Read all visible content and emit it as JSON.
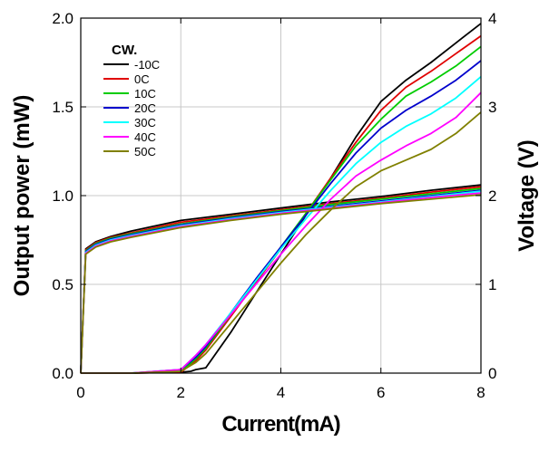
{
  "chart_data": {
    "type": "line",
    "xlabel": "Current(mA)",
    "ylabel": "Output power (mW)",
    "ylabel_right": "Voltage (V)",
    "xlim": [
      0,
      8
    ],
    "ylim": [
      0,
      2.0
    ],
    "ylim_right": [
      0,
      4
    ],
    "xticks": [
      "0",
      "2",
      "4",
      "6",
      "8"
    ],
    "yticks": [
      "0.0",
      "0.5",
      "1.0",
      "1.5",
      "2.0"
    ],
    "yticks_right": [
      "0",
      "1",
      "2",
      "3",
      "4"
    ],
    "grid": true,
    "legend_title": "CW.",
    "legend_position": "top-left",
    "series": [
      {
        "name": "-10C",
        "color": "#000000",
        "power": [
          [
            0,
            0
          ],
          [
            1,
            0
          ],
          [
            2,
            0.005
          ],
          [
            2.2,
            0.01
          ],
          [
            2.3,
            0.02
          ],
          [
            2.5,
            0.03
          ],
          [
            3,
            0.23
          ],
          [
            3.5,
            0.45
          ],
          [
            4,
            0.67
          ],
          [
            4.5,
            0.89
          ],
          [
            5,
            1.1
          ],
          [
            5.5,
            1.33
          ],
          [
            6,
            1.53
          ],
          [
            6.5,
            1.65
          ],
          [
            7,
            1.75
          ],
          [
            7.5,
            1.86
          ],
          [
            8,
            1.97
          ]
        ],
        "voltage": [
          [
            0,
            0
          ],
          [
            0.1,
            1.4
          ],
          [
            0.3,
            1.48
          ],
          [
            0.6,
            1.54
          ],
          [
            1,
            1.6
          ],
          [
            2,
            1.72
          ],
          [
            3,
            1.79
          ],
          [
            4,
            1.86
          ],
          [
            5,
            1.93
          ],
          [
            6,
            1.99
          ],
          [
            7,
            2.06
          ],
          [
            8,
            2.12
          ]
        ]
      },
      {
        "name": "0C",
        "color": "#e00000",
        "power": [
          [
            0,
            0
          ],
          [
            1,
            0
          ],
          [
            2,
            0.005
          ],
          [
            2.3,
            0.07
          ],
          [
            2.5,
            0.13
          ],
          [
            3,
            0.32
          ],
          [
            3.5,
            0.51
          ],
          [
            4,
            0.7
          ],
          [
            4.5,
            0.9
          ],
          [
            5,
            1.1
          ],
          [
            5.5,
            1.3
          ],
          [
            6,
            1.48
          ],
          [
            6.5,
            1.61
          ],
          [
            7,
            1.7
          ],
          [
            7.5,
            1.8
          ],
          [
            8,
            1.9
          ]
        ],
        "voltage": [
          [
            0,
            0
          ],
          [
            0.1,
            1.39
          ],
          [
            0.3,
            1.47
          ],
          [
            0.6,
            1.53
          ],
          [
            1,
            1.58
          ],
          [
            2,
            1.7
          ],
          [
            3,
            1.77
          ],
          [
            4,
            1.84
          ],
          [
            5,
            1.91
          ],
          [
            6,
            1.97
          ],
          [
            7,
            2.04
          ],
          [
            8,
            2.1
          ]
        ]
      },
      {
        "name": "10C",
        "color": "#00cc00",
        "power": [
          [
            0,
            0
          ],
          [
            1,
            0
          ],
          [
            2,
            0.01
          ],
          [
            2.3,
            0.08
          ],
          [
            2.5,
            0.14
          ],
          [
            3,
            0.33
          ],
          [
            3.5,
            0.52
          ],
          [
            4,
            0.71
          ],
          [
            4.5,
            0.9
          ],
          [
            5,
            1.09
          ],
          [
            5.5,
            1.28
          ],
          [
            6,
            1.43
          ],
          [
            6.5,
            1.56
          ],
          [
            7,
            1.64
          ],
          [
            7.5,
            1.73
          ],
          [
            8,
            1.84
          ]
        ],
        "voltage": [
          [
            0,
            0
          ],
          [
            0.1,
            1.38
          ],
          [
            0.3,
            1.46
          ],
          [
            0.6,
            1.52
          ],
          [
            1,
            1.57
          ],
          [
            2,
            1.68
          ],
          [
            3,
            1.76
          ],
          [
            4,
            1.83
          ],
          [
            5,
            1.9
          ],
          [
            6,
            1.96
          ],
          [
            7,
            2.02
          ],
          [
            8,
            2.08
          ]
        ]
      },
      {
        "name": "20C",
        "color": "#0000cc",
        "power": [
          [
            0,
            0
          ],
          [
            1,
            0
          ],
          [
            2,
            0.02
          ],
          [
            2.3,
            0.09
          ],
          [
            2.5,
            0.15
          ],
          [
            3,
            0.34
          ],
          [
            3.5,
            0.53
          ],
          [
            4,
            0.71
          ],
          [
            4.5,
            0.89
          ],
          [
            5,
            1.07
          ],
          [
            5.5,
            1.24
          ],
          [
            6,
            1.38
          ],
          [
            6.5,
            1.48
          ],
          [
            7,
            1.56
          ],
          [
            7.5,
            1.65
          ],
          [
            8,
            1.76
          ]
        ],
        "voltage": [
          [
            0,
            0
          ],
          [
            0.1,
            1.37
          ],
          [
            0.3,
            1.45
          ],
          [
            0.6,
            1.51
          ],
          [
            1,
            1.56
          ],
          [
            2,
            1.67
          ],
          [
            3,
            1.75
          ],
          [
            4,
            1.82
          ],
          [
            5,
            1.88
          ],
          [
            6,
            1.94
          ],
          [
            7,
            2.0
          ],
          [
            8,
            2.06
          ]
        ]
      },
      {
        "name": "30C",
        "color": "#00ffff",
        "power": [
          [
            0,
            0
          ],
          [
            1,
            0
          ],
          [
            2,
            0.02
          ],
          [
            2.3,
            0.1
          ],
          [
            2.5,
            0.16
          ],
          [
            3,
            0.34
          ],
          [
            3.5,
            0.52
          ],
          [
            4,
            0.7
          ],
          [
            4.5,
            0.87
          ],
          [
            5,
            1.03
          ],
          [
            5.5,
            1.18
          ],
          [
            6,
            1.3
          ],
          [
            6.5,
            1.39
          ],
          [
            7,
            1.46
          ],
          [
            7.5,
            1.55
          ],
          [
            8,
            1.67
          ]
        ],
        "voltage": [
          [
            0,
            0
          ],
          [
            0.1,
            1.36
          ],
          [
            0.3,
            1.44
          ],
          [
            0.6,
            1.5
          ],
          [
            1,
            1.55
          ],
          [
            2,
            1.66
          ],
          [
            3,
            1.74
          ],
          [
            4,
            1.81
          ],
          [
            5,
            1.87
          ],
          [
            6,
            1.93
          ],
          [
            7,
            1.99
          ],
          [
            8,
            2.05
          ]
        ]
      },
      {
        "name": "40C",
        "color": "#ff00ff",
        "power": [
          [
            0,
            0
          ],
          [
            1,
            0
          ],
          [
            2,
            0.02
          ],
          [
            2.3,
            0.1
          ],
          [
            2.5,
            0.16
          ],
          [
            3,
            0.33
          ],
          [
            3.5,
            0.5
          ],
          [
            4,
            0.67
          ],
          [
            4.5,
            0.83
          ],
          [
            5,
            0.98
          ],
          [
            5.5,
            1.11
          ],
          [
            6,
            1.2
          ],
          [
            6.5,
            1.28
          ],
          [
            7,
            1.35
          ],
          [
            7.5,
            1.44
          ],
          [
            8,
            1.58
          ]
        ],
        "voltage": [
          [
            0,
            0
          ],
          [
            0.1,
            1.35
          ],
          [
            0.3,
            1.43
          ],
          [
            0.6,
            1.49
          ],
          [
            1,
            1.54
          ],
          [
            2,
            1.65
          ],
          [
            3,
            1.73
          ],
          [
            4,
            1.8
          ],
          [
            5,
            1.86
          ],
          [
            6,
            1.92
          ],
          [
            7,
            1.98
          ],
          [
            8,
            2.03
          ]
        ]
      },
      {
        "name": "50C",
        "color": "#808000",
        "power": [
          [
            0,
            0
          ],
          [
            1,
            0
          ],
          [
            2,
            0.01
          ],
          [
            2.3,
            0.06
          ],
          [
            2.5,
            0.11
          ],
          [
            3,
            0.28
          ],
          [
            3.5,
            0.45
          ],
          [
            4,
            0.62
          ],
          [
            4.5,
            0.78
          ],
          [
            5,
            0.92
          ],
          [
            5.5,
            1.05
          ],
          [
            6,
            1.14
          ],
          [
            6.5,
            1.2
          ],
          [
            7,
            1.26
          ],
          [
            7.5,
            1.35
          ],
          [
            8,
            1.47
          ]
        ],
        "voltage": [
          [
            0,
            0
          ],
          [
            0.1,
            1.34
          ],
          [
            0.3,
            1.42
          ],
          [
            0.6,
            1.48
          ],
          [
            1,
            1.53
          ],
          [
            2,
            1.64
          ],
          [
            3,
            1.72
          ],
          [
            4,
            1.79
          ],
          [
            5,
            1.85
          ],
          [
            6,
            1.91
          ],
          [
            7,
            1.96
          ],
          [
            8,
            2.01
          ]
        ]
      }
    ]
  }
}
